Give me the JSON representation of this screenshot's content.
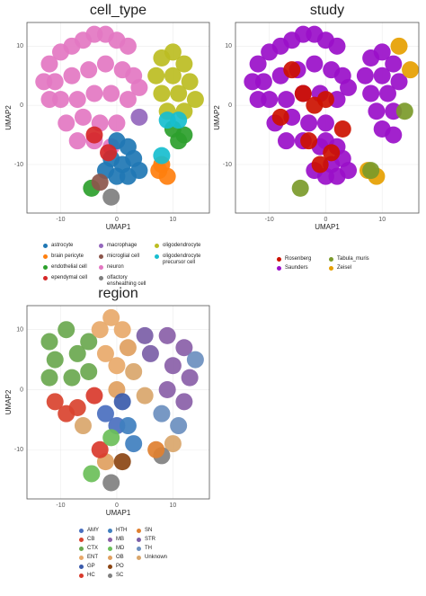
{
  "chart_data": [
    {
      "type": "scatter",
      "title": "cell_type",
      "xlabel": "UMAP1",
      "ylabel": "UMAP2",
      "xlim": [
        -16,
        16.5
      ],
      "ylim": [
        -18.2,
        14
      ],
      "xticks": [
        -10,
        0,
        10
      ],
      "yticks": [
        -10,
        0,
        10
      ],
      "grid": true,
      "series": [
        {
          "name": "astrocyte",
          "color": "#1f77b4",
          "x": [
            0,
            2,
            -1,
            1,
            3,
            0,
            2,
            -2,
            4
          ],
          "y": [
            -6,
            -7,
            -9,
            -10,
            -9,
            -12,
            -12,
            -11,
            -11
          ]
        },
        {
          "name": "brain pericyte",
          "color": "#ff7f0e",
          "x": [
            7.5,
            9,
            8
          ],
          "y": [
            -11,
            -12,
            -10
          ]
        },
        {
          "name": "endothelial cell",
          "color": "#2ca02c",
          "x": [
            10,
            12,
            11,
            -4.5
          ],
          "y": [
            -4,
            -5,
            -6,
            -14
          ]
        },
        {
          "name": "ependymal cell",
          "color": "#d62728",
          "x": [
            -1.5,
            -4
          ],
          "y": [
            -8,
            -5
          ]
        },
        {
          "name": "macrophage",
          "color": "#9467bd",
          "x": [
            4
          ],
          "y": [
            -2
          ]
        },
        {
          "name": "microglial cell",
          "color": "#8c564b",
          "x": [
            -3
          ],
          "y": [
            -13
          ]
        },
        {
          "name": "neuron",
          "color": "#e377c2",
          "x": [
            -12,
            -10,
            -8,
            -6,
            -4,
            -2,
            0,
            2,
            -11,
            -8,
            -5,
            -2,
            1,
            3,
            -10,
            -7,
            -4,
            -1,
            2,
            -9,
            -6,
            -3,
            0,
            -7,
            -4,
            -1,
            4,
            -12,
            -13
          ],
          "y": [
            7,
            9,
            10,
            11,
            12,
            12,
            11,
            10,
            4,
            5,
            6,
            7,
            6,
            5,
            1,
            1,
            2,
            2,
            1,
            -3,
            -2,
            -3,
            -3,
            -6,
            -6,
            -7,
            3,
            1,
            4
          ]
        },
        {
          "name": "olfactory ensheathing cell",
          "color": "#7f7f7f",
          "x": [
            -1
          ],
          "y": [
            -15.5
          ]
        },
        {
          "name": "oligodendrocyte",
          "color": "#bcbd22",
          "x": [
            8,
            10,
            12,
            7,
            10,
            13,
            8,
            11,
            14,
            9,
            12
          ],
          "y": [
            8,
            9,
            7,
            5,
            5,
            4,
            2,
            2,
            1,
            -1,
            -1
          ]
        },
        {
          "name": "oligodendrocyte precursor cell",
          "color": "#17becf",
          "x": [
            9,
            8,
            11
          ],
          "y": [
            -2.5,
            -8.5,
            -2.5
          ]
        }
      ]
    },
    {
      "type": "scatter",
      "title": "study",
      "xlabel": "UMAP1",
      "ylabel": "UMAP2",
      "xlim": [
        -16,
        16.5
      ],
      "ylim": [
        -18.2,
        14
      ],
      "xticks": [
        -10,
        0,
        10
      ],
      "yticks": [
        -10,
        0,
        10
      ],
      "grid": true,
      "series": [
        {
          "name": "Rosenberg",
          "color": "#cc1100",
          "x": [
            -4,
            -2,
            0,
            -3,
            1,
            -6,
            3,
            -1,
            -8
          ],
          "y": [
            2,
            0,
            1,
            -6,
            -8,
            6,
            -4,
            -10,
            -2
          ]
        },
        {
          "name": "Saunders",
          "color": "#9a0fc9",
          "x": [
            -12,
            -10,
            -8,
            -6,
            -4,
            -2,
            0,
            2,
            -11,
            -8,
            -5,
            -2,
            1,
            3,
            -10,
            -7,
            -4,
            -1,
            2,
            -9,
            -6,
            -3,
            0,
            -7,
            -4,
            -1,
            4,
            -12,
            -13,
            8,
            10,
            12,
            7,
            10,
            13,
            8,
            11,
            9,
            12,
            0,
            2,
            1,
            3,
            0,
            2,
            -2,
            4,
            10,
            12
          ],
          "y": [
            7,
            9,
            10,
            11,
            12,
            12,
            11,
            10,
            4,
            5,
            6,
            7,
            6,
            5,
            1,
            1,
            2,
            2,
            1,
            -3,
            -2,
            -3,
            -3,
            -6,
            -6,
            -7,
            3,
            1,
            4,
            8,
            9,
            7,
            5,
            5,
            4,
            2,
            2,
            -1,
            -1,
            -6,
            -7,
            -10,
            -9,
            -12,
            -12,
            -11,
            -11,
            -4,
            -5
          ]
        },
        {
          "name": "Tabula_muris",
          "color": "#7b9a2a",
          "x": [
            -4.5,
            14,
            8
          ],
          "y": [
            -14,
            -1,
            -11
          ]
        },
        {
          "name": "Zeisel",
          "color": "#e69f00",
          "x": [
            15,
            13,
            9,
            7.5
          ],
          "y": [
            6,
            10,
            -12,
            -11
          ]
        }
      ]
    },
    {
      "type": "scatter",
      "title": "region",
      "xlabel": "UMAP1",
      "ylabel": "UMAP2",
      "xlim": [
        -16,
        16.5
      ],
      "ylim": [
        -18.2,
        14
      ],
      "xticks": [
        -10,
        0,
        10
      ],
      "yticks": [
        -10,
        0,
        10
      ],
      "grid": true,
      "series": [
        {
          "name": "AMY",
          "color": "#4a6fbf",
          "x": [
            -2,
            0
          ],
          "y": [
            -4,
            -6
          ]
        },
        {
          "name": "CB",
          "color": "#d9432f",
          "x": [
            -11,
            -9,
            -7
          ],
          "y": [
            -2,
            -4,
            -3
          ]
        },
        {
          "name": "CTX",
          "color": "#6aa84f",
          "x": [
            -12,
            -9,
            -11,
            -7,
            -12,
            -8,
            -5,
            -5
          ],
          "y": [
            8,
            10,
            5,
            6,
            2,
            2,
            8,
            3
          ]
        },
        {
          "name": "ENT",
          "color": "#e8a96a",
          "x": [
            -3,
            -1,
            1,
            -2,
            0
          ],
          "y": [
            10,
            12,
            10,
            6,
            4
          ]
        },
        {
          "name": "GP",
          "color": "#3b5bab",
          "x": [
            1
          ],
          "y": [
            -2
          ]
        },
        {
          "name": "HC",
          "color": "#d93a2c",
          "x": [
            -4,
            -3
          ],
          "y": [
            -1,
            -10
          ]
        },
        {
          "name": "HTH",
          "color": "#3f7fbf",
          "x": [
            2,
            3
          ],
          "y": [
            -6,
            -9
          ]
        },
        {
          "name": "MB",
          "color": "#8a5fa8",
          "x": [
            9,
            12,
            10,
            13,
            9,
            12
          ],
          "y": [
            9,
            7,
            4,
            2,
            0,
            -2
          ]
        },
        {
          "name": "MD",
          "color": "#6bbf59",
          "x": [
            -1,
            -4.5
          ],
          "y": [
            -8,
            -14
          ]
        },
        {
          "name": "OB",
          "color": "#e0a060",
          "x": [
            2,
            0,
            -2
          ],
          "y": [
            7,
            0,
            -12
          ]
        },
        {
          "name": "PO",
          "color": "#8b4513",
          "x": [
            1
          ],
          "y": [
            -12
          ]
        },
        {
          "name": "SC",
          "color": "#808080",
          "x": [
            -1,
            8
          ],
          "y": [
            -15.5,
            -11
          ]
        },
        {
          "name": "SN",
          "color": "#e08030",
          "x": [
            7
          ],
          "y": [
            -10
          ]
        },
        {
          "name": "STR",
          "color": "#7b5ea7",
          "x": [
            5,
            6
          ],
          "y": [
            9,
            6
          ]
        },
        {
          "name": "TH",
          "color": "#6b8fbf",
          "x": [
            8,
            11,
            14
          ],
          "y": [
            -4,
            -6,
            5
          ]
        },
        {
          "name": "Unknown",
          "color": "#d9a66b",
          "x": [
            3,
            5,
            -6,
            10
          ],
          "y": [
            3,
            -1,
            -6,
            -9
          ]
        }
      ]
    }
  ]
}
